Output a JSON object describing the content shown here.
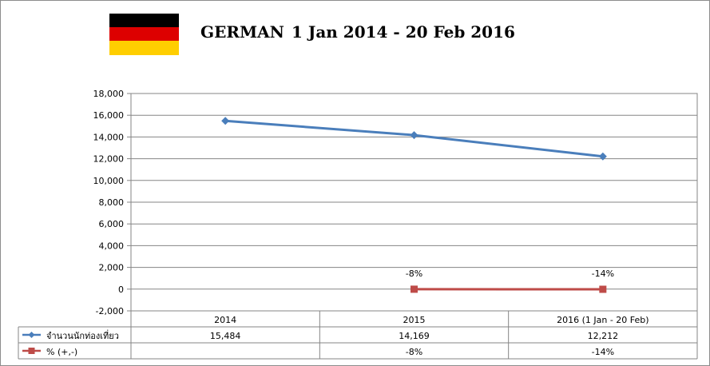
{
  "title_country": "GERMAN",
  "title_range": "1 Jan 2014 - 20 Feb 2016",
  "flag_colors": [
    "#000000",
    "#dd0000",
    "#ffce00"
  ],
  "chart_data": {
    "type": "line",
    "categories": [
      "2014",
      "2015",
      "2016 (1 Jan - 20 Feb)"
    ],
    "ylim": [
      -2000,
      18000
    ],
    "yticks": [
      -2000,
      0,
      2000,
      4000,
      6000,
      8000,
      10000,
      12000,
      14000,
      16000,
      18000
    ],
    "ytick_labels": [
      "-2,000",
      "0",
      "2,000",
      "4,000",
      "6,000",
      "8,000",
      "10,000",
      "12,000",
      "14,000",
      "16,000",
      "18,000"
    ],
    "grid": true,
    "series": [
      {
        "name": "จำนวนนักท่องเที่ยว",
        "values": [
          15484,
          14169,
          12212
        ],
        "table_labels": [
          "15,484",
          "14,169",
          "12,212"
        ],
        "color": "#4a7ebb",
        "marker": "diamond"
      },
      {
        "name": "% (+,-)",
        "values": [
          null,
          -8,
          -14
        ],
        "table_labels": [
          "",
          "-8%",
          "-14%"
        ],
        "data_labels": [
          "",
          "-8%",
          "-14%"
        ],
        "color": "#be4b48",
        "marker": "square"
      }
    ]
  }
}
